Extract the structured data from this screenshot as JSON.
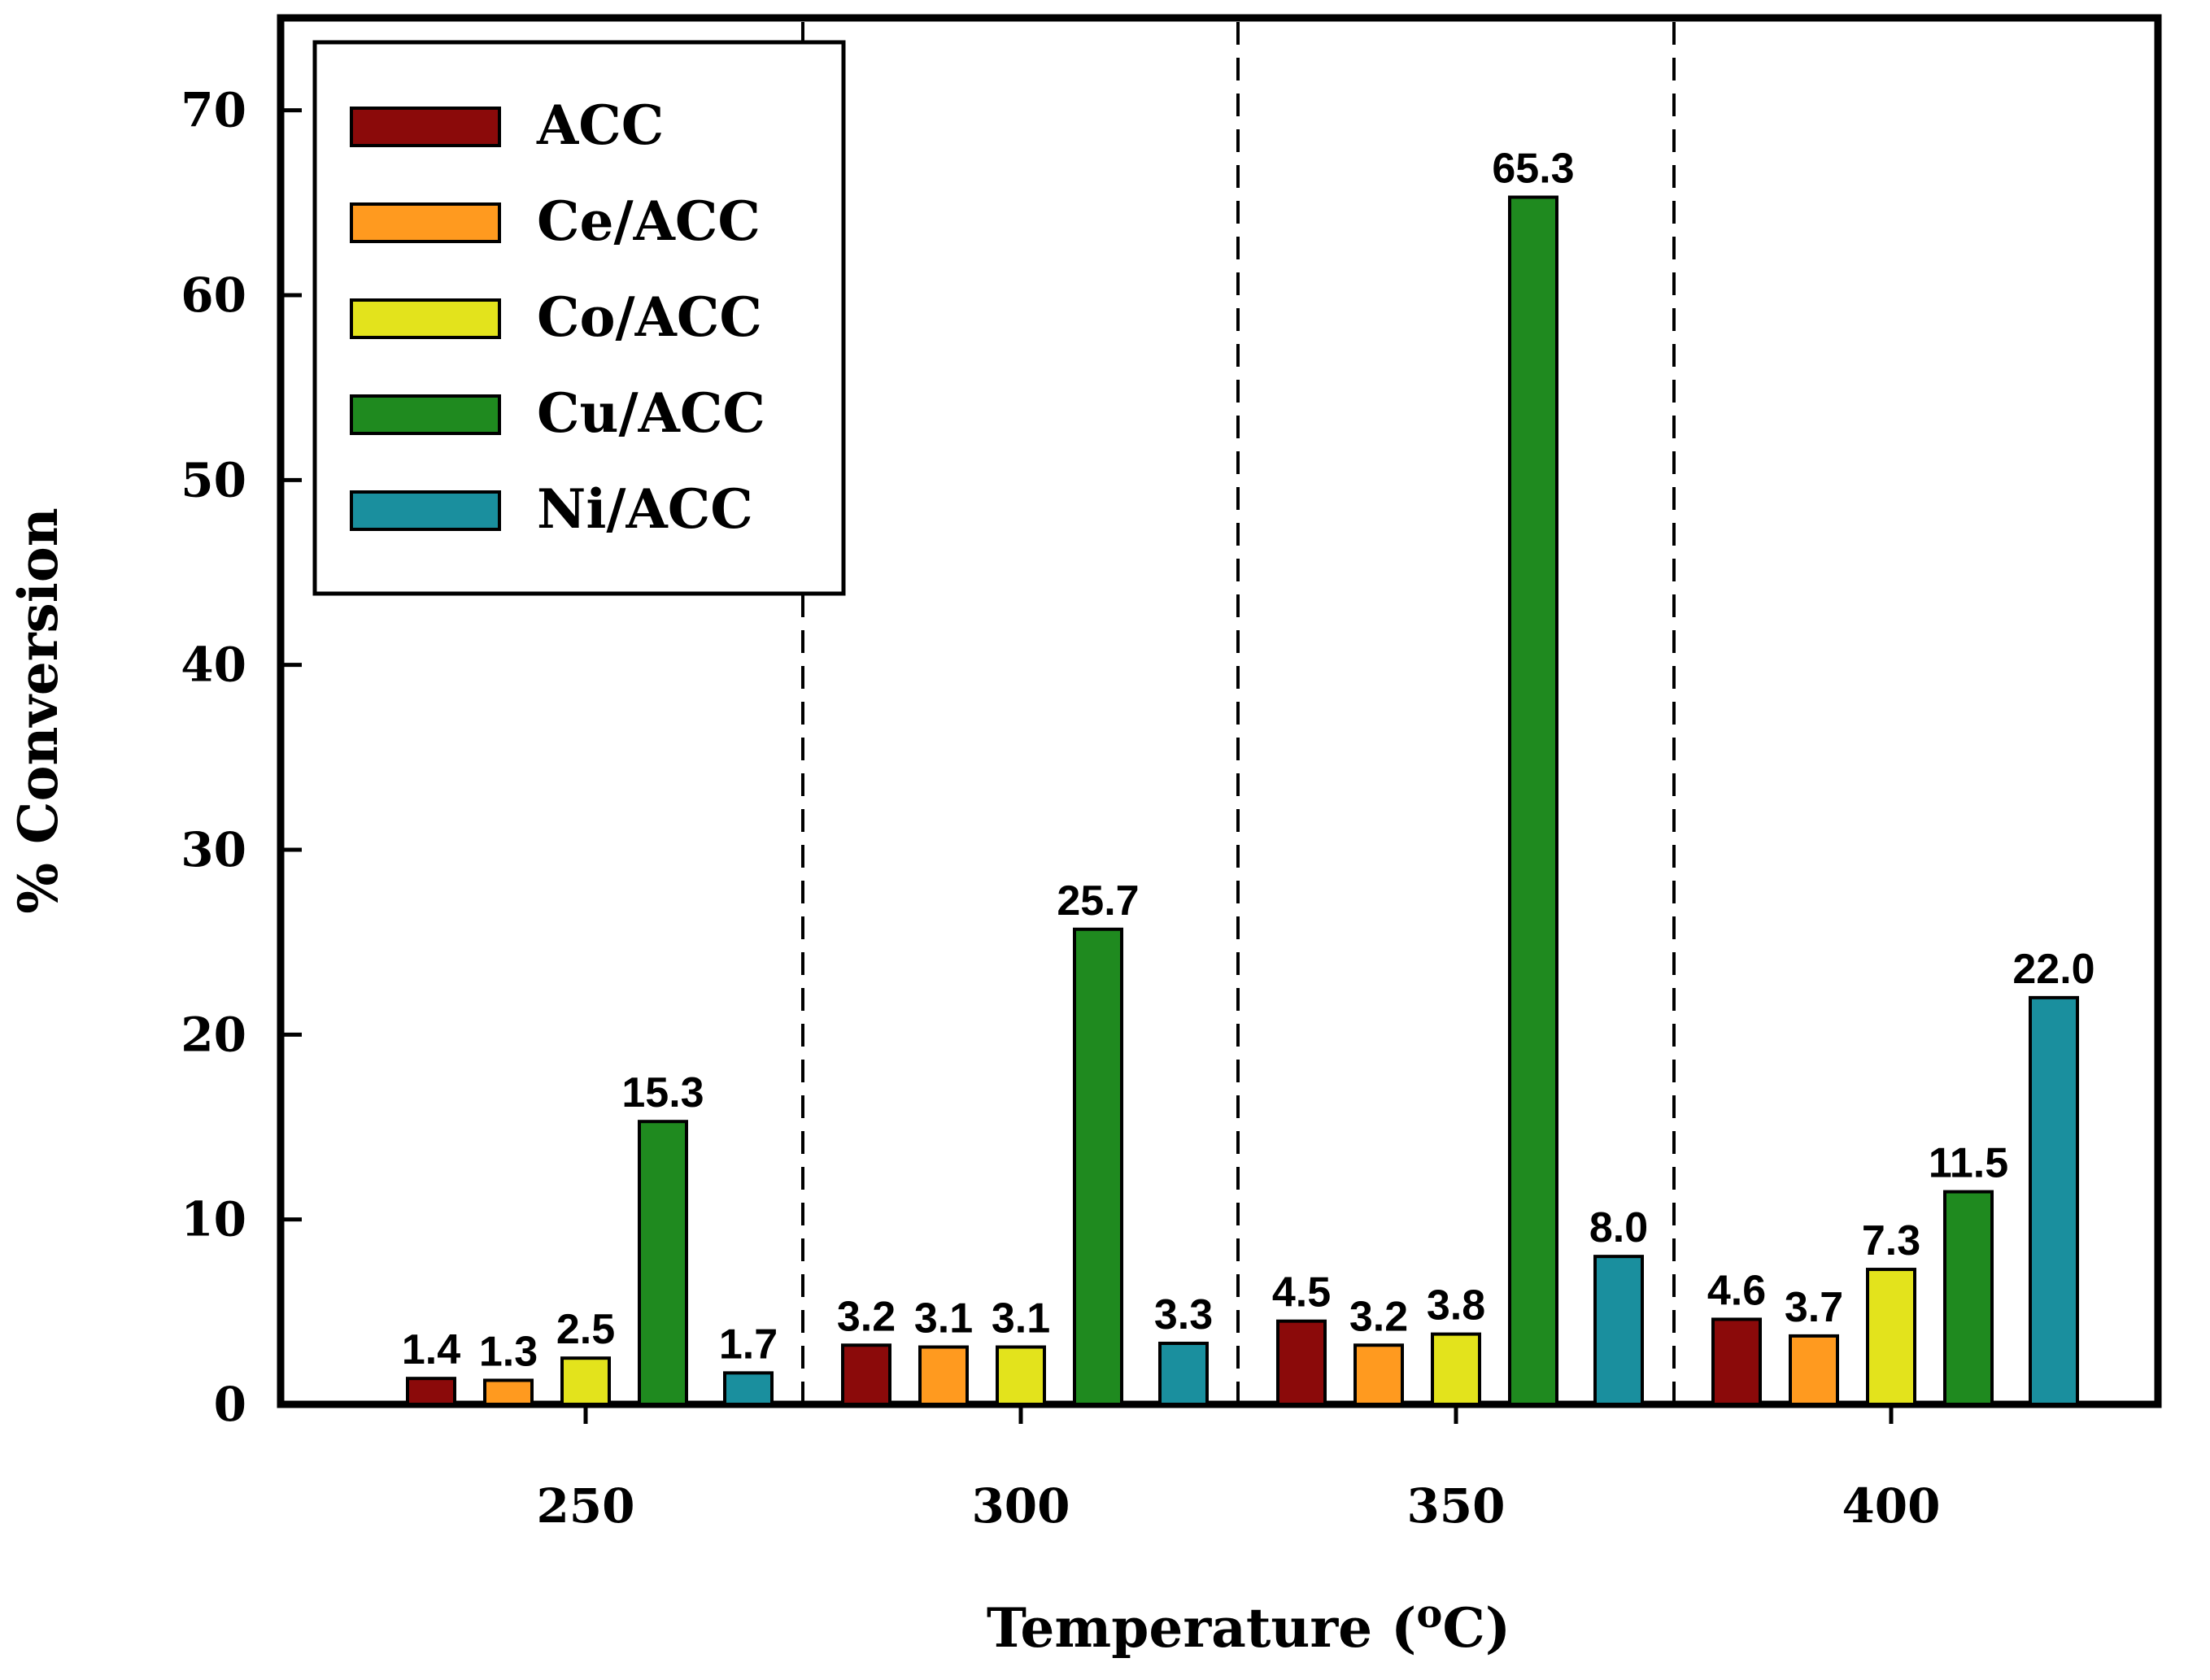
{
  "chart_data": {
    "type": "bar",
    "title": "",
    "xlabel": "Temperature (",
    "xlabel_super": "o",
    "xlabel_unit": "C)",
    "ylabel": "% Conversion",
    "ylim": [
      0,
      75
    ],
    "yticks": [
      "0",
      "10",
      "20",
      "30",
      "40",
      "50",
      "60",
      "70"
    ],
    "categories": [
      "250",
      "300",
      "350",
      "400"
    ],
    "legend_position": "top-left",
    "group_separators": "dashed",
    "series": [
      {
        "name": "ACC",
        "color": "#8b0a0a",
        "values": [
          1.4,
          3.2,
          4.5,
          4.6
        ],
        "labels": [
          "1.4",
          "3.2",
          "4.5",
          "4.6"
        ]
      },
      {
        "name": "Ce/ACC",
        "color": "#ff9a1f",
        "values": [
          1.3,
          3.1,
          3.2,
          3.7
        ],
        "labels": [
          "1.3",
          "3.1",
          "3.2",
          "3.7"
        ]
      },
      {
        "name": "Co/ACC",
        "color": "#e3e31c",
        "values": [
          2.5,
          3.1,
          3.8,
          7.3
        ],
        "labels": [
          "2.5",
          "3.1",
          "3.8",
          "7.3"
        ]
      },
      {
        "name": "Cu/ACC",
        "color": "#1f8a1f",
        "values": [
          15.3,
          25.7,
          65.3,
          11.5
        ],
        "labels": [
          "15.3",
          "25.7",
          "65.3",
          "11.5"
        ]
      },
      {
        "name": "Ni/ACC",
        "color": "#1a8f9e",
        "values": [
          1.7,
          3.3,
          8.0,
          22.0
        ],
        "labels": [
          "1.7",
          "3.3",
          "8.0",
          "22.0"
        ]
      }
    ]
  }
}
